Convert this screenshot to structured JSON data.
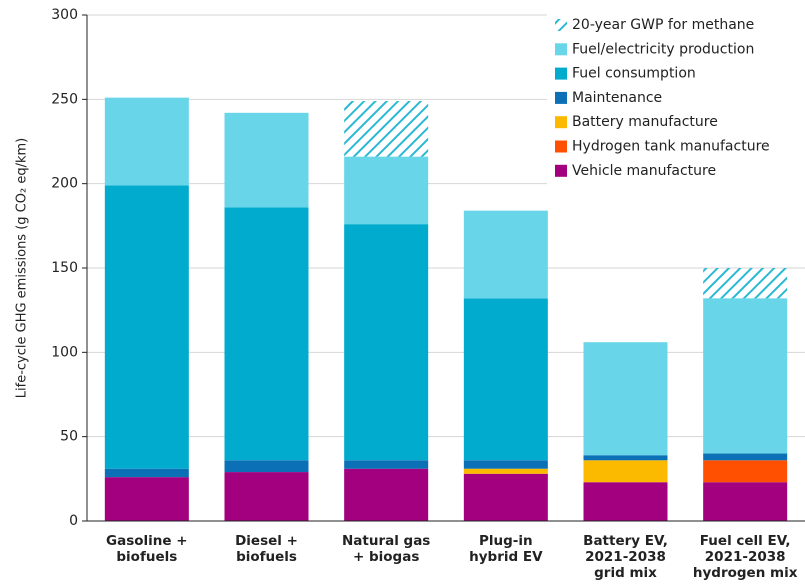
{
  "chart_data": {
    "type": "stacked_bar",
    "ylabel": "Life-cycle GHG emissions (g CO₂ eq/km)",
    "categories": [
      [
        "Gasoline +",
        "biofuels"
      ],
      [
        "Diesel +",
        "biofuels"
      ],
      [
        "Natural gas",
        "+ biogas"
      ],
      [
        "Plug-in",
        "hybrid EV"
      ],
      [
        "Battery EV,",
        "2021-2038",
        "grid mix"
      ],
      [
        "Fuel cell EV,",
        "2021-2038",
        "hydrogen mix"
      ]
    ],
    "series": [
      {
        "name": "20-year GWP for methane",
        "color": "#2ab8d4",
        "pattern": "hatch",
        "values": [
          0,
          0,
          33,
          0,
          0,
          18
        ]
      },
      {
        "name": "Fuel/electricity production",
        "color": "#68d6e8",
        "values": [
          52,
          56,
          40,
          52,
          67,
          92
        ]
      },
      {
        "name": "Fuel consumption",
        "color": "#00abcd",
        "values": [
          168,
          150,
          140,
          96,
          0,
          0
        ]
      },
      {
        "name": "Maintenance",
        "color": "#0b70b6",
        "values": [
          5,
          7,
          5,
          5,
          3,
          4
        ]
      },
      {
        "name": "Battery manufacture",
        "color": "#fbb900",
        "values": [
          0,
          0,
          0,
          3,
          13,
          0
        ]
      },
      {
        "name": "Hydrogen tank manufacture",
        "color": "#ff4f00",
        "values": [
          0,
          0,
          0,
          0,
          0,
          13
        ]
      },
      {
        "name": "Vehicle manufacture",
        "color": "#a2007e",
        "values": [
          26,
          29,
          31,
          28,
          23,
          23
        ]
      }
    ],
    "ylim": [
      0,
      300
    ],
    "yticks": [
      0,
      50,
      100,
      150,
      200,
      250,
      300
    ],
    "grid": true,
    "legend": "top-right"
  }
}
